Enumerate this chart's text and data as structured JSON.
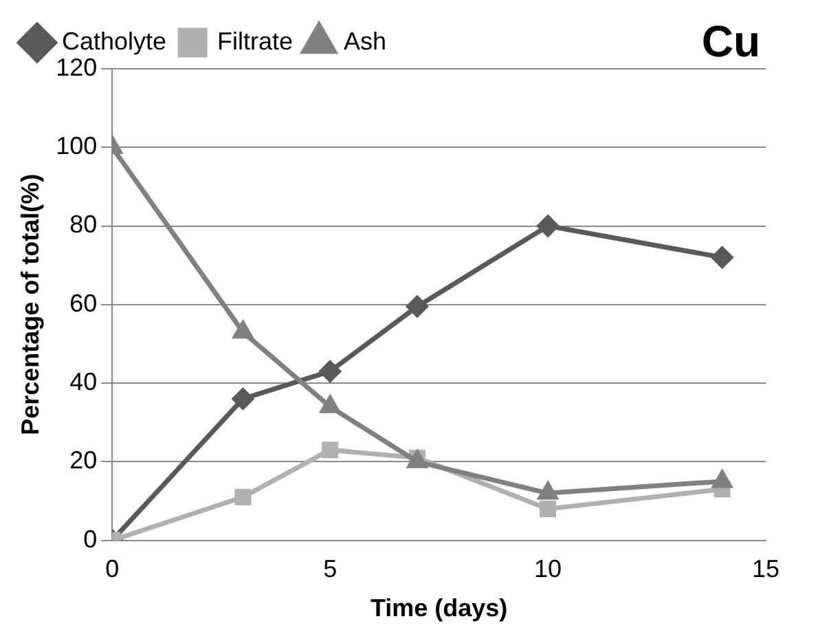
{
  "chart_data": {
    "type": "line",
    "xlabel": "Time (days)",
    "ylabel": "Percentage of total(%)",
    "annotations": [
      "Cu"
    ],
    "xlim": [
      0,
      15
    ],
    "xticks": [
      0,
      5,
      10,
      15
    ],
    "ylim": [
      0,
      120
    ],
    "yticks": [
      0,
      20,
      40,
      60,
      80,
      100,
      120
    ],
    "grid": "y",
    "legend": "top",
    "line_style": "solid",
    "series": [
      {
        "name": "Catholyte",
        "color": "#595959",
        "marker": "diamond",
        "x": [
          0,
          3,
          5,
          7,
          10,
          14
        ],
        "values": [
          0,
          36,
          43,
          59.5,
          80,
          72
        ]
      },
      {
        "name": "Filtrate",
        "color": "#b0b0b0",
        "marker": "square",
        "x": [
          0,
          3,
          5,
          7,
          10,
          14
        ],
        "values": [
          0,
          11,
          23,
          21,
          8,
          13
        ]
      },
      {
        "name": "Ash",
        "color": "#808080",
        "marker": "triangle",
        "x": [
          0,
          3,
          5,
          7,
          10,
          14
        ],
        "values": [
          100,
          53,
          34,
          20,
          12,
          15
        ]
      }
    ]
  }
}
